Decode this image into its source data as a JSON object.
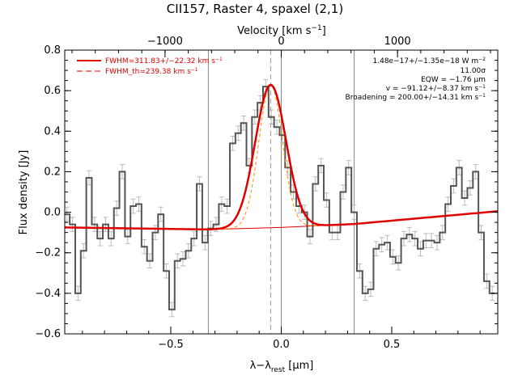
{
  "chart_data": {
    "type": "line",
    "title": "CII157, Raster 4, spaxel (2,1)",
    "xlabel": "λ−λ_rest [μm]",
    "ylabel": "Flux density [Jy]",
    "x2label": "Velocity [km s⁻¹]",
    "xlim": [
      -0.98,
      0.98
    ],
    "ylim": [
      -0.6,
      0.8
    ],
    "velocity_per_um": 1900.5,
    "xticks": [
      -0.5,
      0.0,
      0.5
    ],
    "xtick_labels": [
      "−0.5",
      "0.0",
      "0.5"
    ],
    "yticks": [
      -0.6,
      -0.4,
      -0.2,
      0.0,
      0.2,
      0.4,
      0.6,
      0.8
    ],
    "ytick_labels": [
      "−0.6",
      "−0.4",
      "−0.2",
      "0.0",
      "0.2",
      "0.4",
      "0.6",
      "0.8"
    ],
    "x2ticks": [
      -1000,
      0,
      1000
    ],
    "x2tick_labels": [
      "−1000",
      "0",
      "1000"
    ],
    "legend": [
      {
        "label": "FWHM=311.83+/−22.32 km s⁻¹",
        "style": "solid"
      },
      {
        "label": "FWHM_th=239.38 km s⁻¹",
        "style": "dashed"
      }
    ],
    "legend_position": "top-left",
    "stats": [
      "1.48e−17+/−1.35e−18 W m⁻²",
      "11.00σ",
      "EQW = −1.76 μm",
      "v = −91.12+/−8.37 km s⁻¹",
      "Broadening = 200.00+/−14.31 km s⁻¹"
    ],
    "vertical_lines": [
      -0.33,
      0.0,
      0.33
    ],
    "center_dashed": -0.048,
    "series": [
      {
        "kind": "step",
        "color": "#555555",
        "x": [
          -0.97,
          -0.945,
          -0.92,
          -0.895,
          -0.87,
          -0.845,
          -0.82,
          -0.795,
          -0.77,
          -0.745,
          -0.72,
          -0.695,
          -0.67,
          -0.645,
          -0.62,
          -0.595,
          -0.57,
          -0.545,
          -0.52,
          -0.495,
          -0.47,
          -0.445,
          -0.42,
          -0.395,
          -0.37,
          -0.345,
          -0.32,
          -0.295,
          -0.27,
          -0.245,
          -0.22,
          -0.195,
          -0.17,
          -0.145,
          -0.12,
          -0.095,
          -0.07,
          -0.045,
          -0.02,
          0.005,
          0.03,
          0.055,
          0.08,
          0.105,
          0.13,
          0.155,
          0.18,
          0.205,
          0.23,
          0.255,
          0.28,
          0.305,
          0.33,
          0.355,
          0.38,
          0.405,
          0.43,
          0.455,
          0.48,
          0.505,
          0.53,
          0.555,
          0.58,
          0.605,
          0.63,
          0.655,
          0.68,
          0.705,
          0.73,
          0.755,
          0.78,
          0.805,
          0.83,
          0.855,
          0.88,
          0.905,
          0.93,
          0.955
        ],
        "y": [
          -0.01,
          -0.06,
          -0.4,
          -0.19,
          0.17,
          -0.06,
          -0.13,
          -0.06,
          -0.13,
          0.02,
          0.2,
          -0.12,
          0.03,
          0.04,
          -0.17,
          -0.24,
          -0.1,
          -0.01,
          -0.29,
          -0.48,
          -0.24,
          -0.23,
          -0.19,
          -0.13,
          0.14,
          -0.15,
          -0.08,
          -0.06,
          0.04,
          0.03,
          0.34,
          0.39,
          0.44,
          0.23,
          0.47,
          0.54,
          0.62,
          0.47,
          0.42,
          0.38,
          0.22,
          0.1,
          0.03,
          0.0,
          -0.12,
          0.14,
          0.23,
          0.06,
          -0.1,
          -0.1,
          0.1,
          0.22,
          0.0,
          -0.29,
          -0.4,
          -0.38,
          -0.18,
          -0.16,
          -0.15,
          -0.22,
          -0.25,
          -0.13,
          -0.11,
          -0.13,
          -0.18,
          -0.14,
          -0.14,
          -0.15,
          -0.1,
          0.04,
          0.13,
          0.22,
          0.07,
          0.12,
          0.2,
          -0.1,
          -0.34,
          -0.4
        ],
        "yerr": 0.035
      },
      {
        "kind": "gaussian-fit",
        "name": "FWHM=311.83+/−22.32 km s⁻¹",
        "color": "#e00000",
        "continuum": [
          [
            -0.98,
            -0.075
          ],
          [
            -0.33,
            -0.085
          ],
          [
            0.0,
            -0.075
          ],
          [
            0.33,
            -0.058
          ],
          [
            0.98,
            0.005
          ]
        ],
        "center": -0.048,
        "amplitude": 0.705,
        "fwhm_um": 0.164
      },
      {
        "kind": "gaussian-model",
        "name": "FWHM_th=239.38 km s⁻¹",
        "color": "#ff8c00",
        "center": -0.048,
        "amplitude": 0.705,
        "fwhm_um": 0.126
      }
    ]
  }
}
